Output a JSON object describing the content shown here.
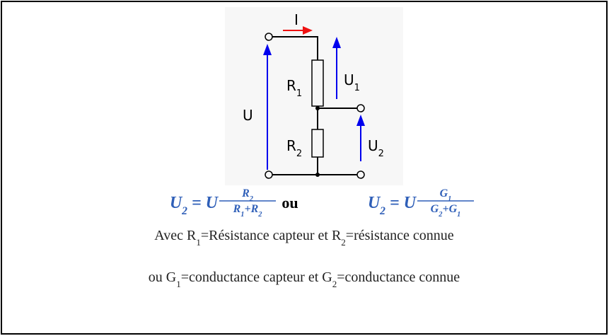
{
  "circuit": {
    "labels": {
      "current": [
        {
          "main": "I"
        }
      ],
      "r1": [
        {
          "main": "R",
          "sub": "1"
        }
      ],
      "u1": [
        {
          "main": "U",
          "sub": "1"
        }
      ],
      "u": [
        {
          "main": "U"
        }
      ],
      "r2": [
        {
          "main": "R",
          "sub": "2"
        }
      ],
      "u2": [
        {
          "main": "U",
          "sub": "2"
        }
      ]
    }
  },
  "formulas": [
    {
      "lhs": [
        {
          "main": "U",
          "sub": "2"
        },
        {
          "main": " = "
        },
        {
          "main": "U"
        }
      ],
      "numerator": [
        {
          "main": "R",
          "sub": "2"
        }
      ],
      "denominator": [
        {
          "main": "R",
          "sub": "1"
        },
        {
          "main": "+"
        },
        {
          "main": "R",
          "sub": "2"
        }
      ]
    },
    {
      "lhs": [
        {
          "main": "U",
          "sub": "2"
        },
        {
          "main": " = "
        },
        {
          "main": "U"
        }
      ],
      "numerator": [
        {
          "main": "G",
          "sub": "1"
        }
      ],
      "denominator": [
        {
          "main": "G",
          "sub": "2"
        },
        {
          "main": "+"
        },
        {
          "main": "G",
          "sub": "1"
        }
      ]
    }
  ],
  "separator": "ou",
  "lines": [
    [
      {
        "main": "Avec R",
        "sub": "1"
      },
      {
        "main": "=Résistance capteur et R",
        "sub": "2"
      },
      {
        "main": "=résistance connue"
      }
    ],
    [
      {
        "main": "ou G",
        "sub": "1"
      },
      {
        "main": "=conductance capteur et G",
        "sub": "2"
      },
      {
        "main": "=conductance connue"
      }
    ]
  ]
}
